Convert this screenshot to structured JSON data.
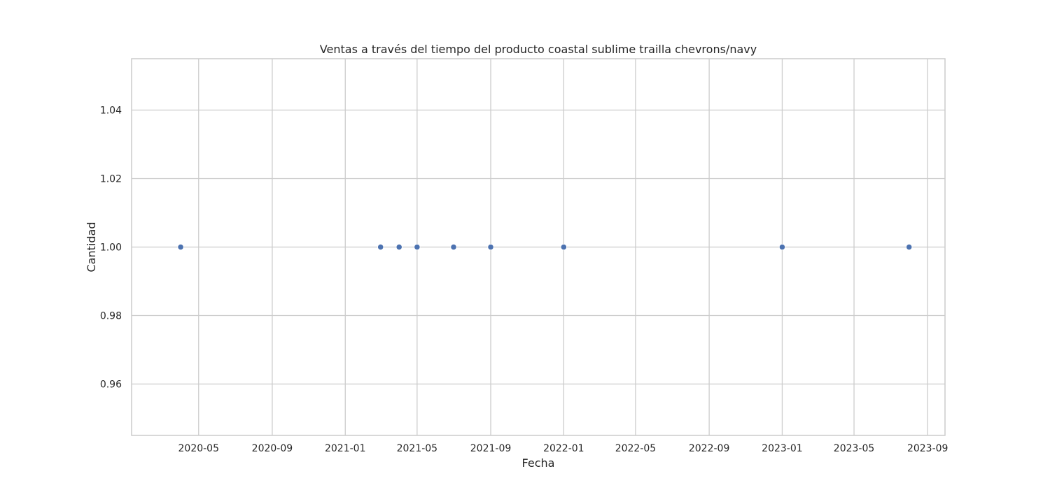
{
  "chart_data": {
    "type": "scatter",
    "title": "Ventas a través del tiempo del producto coastal sublime trailla chevrons/navy",
    "xlabel": "Fecha",
    "ylabel": "Cantidad",
    "x_axis_type": "date",
    "xlim": [
      "2020-01-10",
      "2023-09-30"
    ],
    "ylim": [
      0.945,
      1.055
    ],
    "x_ticks": [
      "2020-05-01",
      "2020-09-01",
      "2021-01-01",
      "2021-05-01",
      "2021-09-01",
      "2022-01-01",
      "2022-05-01",
      "2022-09-01",
      "2023-01-01",
      "2023-05-01",
      "2023-09-01"
    ],
    "x_tick_labels": [
      "2020-05",
      "2020-09",
      "2021-01",
      "2021-05",
      "2021-09",
      "2022-01",
      "2022-05",
      "2022-09",
      "2023-01",
      "2023-05",
      "2023-09"
    ],
    "y_ticks": [
      0.96,
      0.98,
      1.0,
      1.02,
      1.04
    ],
    "y_tick_labels": [
      "0.96",
      "0.98",
      "1.00",
      "1.02",
      "1.04"
    ],
    "grid": true,
    "marker_color": "#4c72b0",
    "grid_color": "#cccccc",
    "points": [
      {
        "x": "2020-04-01",
        "y": 1
      },
      {
        "x": "2021-03-01",
        "y": 1
      },
      {
        "x": "2021-04-01",
        "y": 1
      },
      {
        "x": "2021-05-01",
        "y": 1
      },
      {
        "x": "2021-07-01",
        "y": 1
      },
      {
        "x": "2021-09-01",
        "y": 1
      },
      {
        "x": "2022-01-01",
        "y": 1
      },
      {
        "x": "2023-01-01",
        "y": 1
      },
      {
        "x": "2023-08-01",
        "y": 1
      }
    ]
  }
}
